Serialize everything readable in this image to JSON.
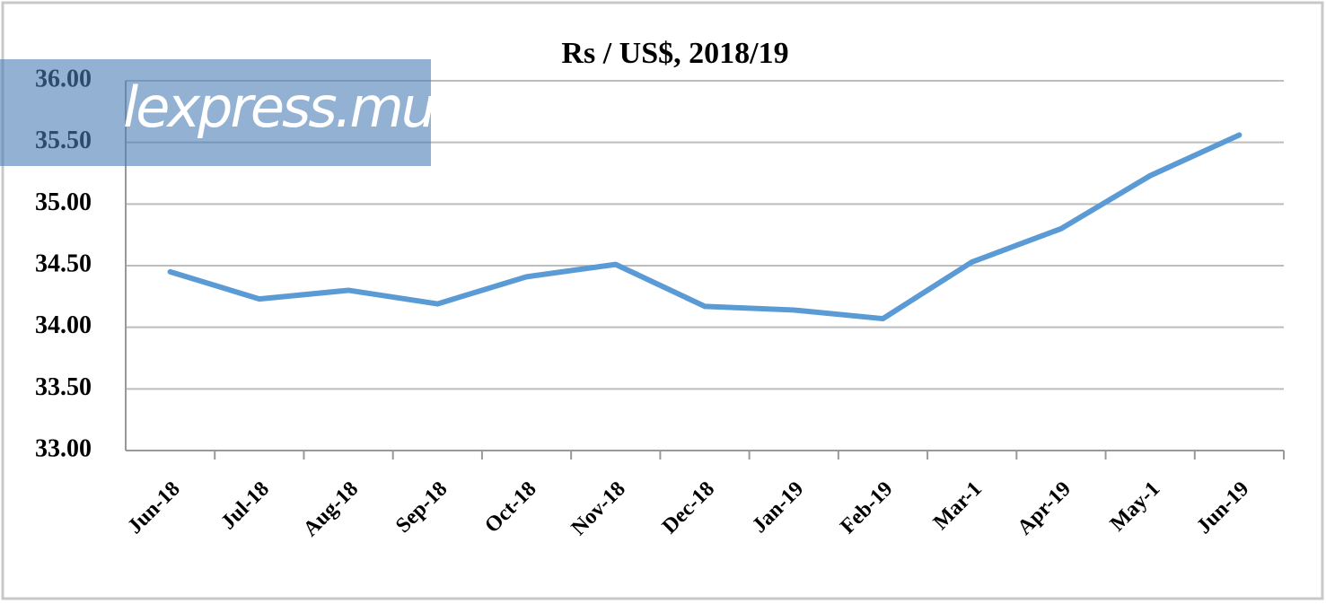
{
  "chart_data": {
    "type": "line",
    "title": "Rs / US$, 2018/19",
    "watermark": "lexpress.mu",
    "categories": [
      "Jun-18",
      "Jul-18",
      "Aug-18",
      "Sep-18",
      "Oct-18",
      "Nov-18",
      "Dec-18",
      "Jan-19",
      "Feb-19",
      "Mar-1",
      "Apr-19",
      "May-1",
      "Jun-19"
    ],
    "series": [
      {
        "name": "Rs / US$",
        "color": "#5b9bd5",
        "values": [
          34.45,
          34.23,
          34.3,
          34.19,
          34.41,
          34.51,
          34.17,
          34.14,
          34.07,
          34.53,
          34.8,
          35.23,
          35.56
        ]
      }
    ],
    "ylim": [
      33,
      36
    ],
    "yticks": [
      {
        "value": 33,
        "label": "33.00"
      },
      {
        "value": 33.5,
        "label": "33.50"
      },
      {
        "value": 34,
        "label": "34.00"
      },
      {
        "value": 34.5,
        "label": "34.50"
      },
      {
        "value": 35,
        "label": "35.00"
      },
      {
        "value": 35.5,
        "label": "35.50"
      },
      {
        "value": 36,
        "label": "36.00"
      }
    ],
    "grid": true
  }
}
